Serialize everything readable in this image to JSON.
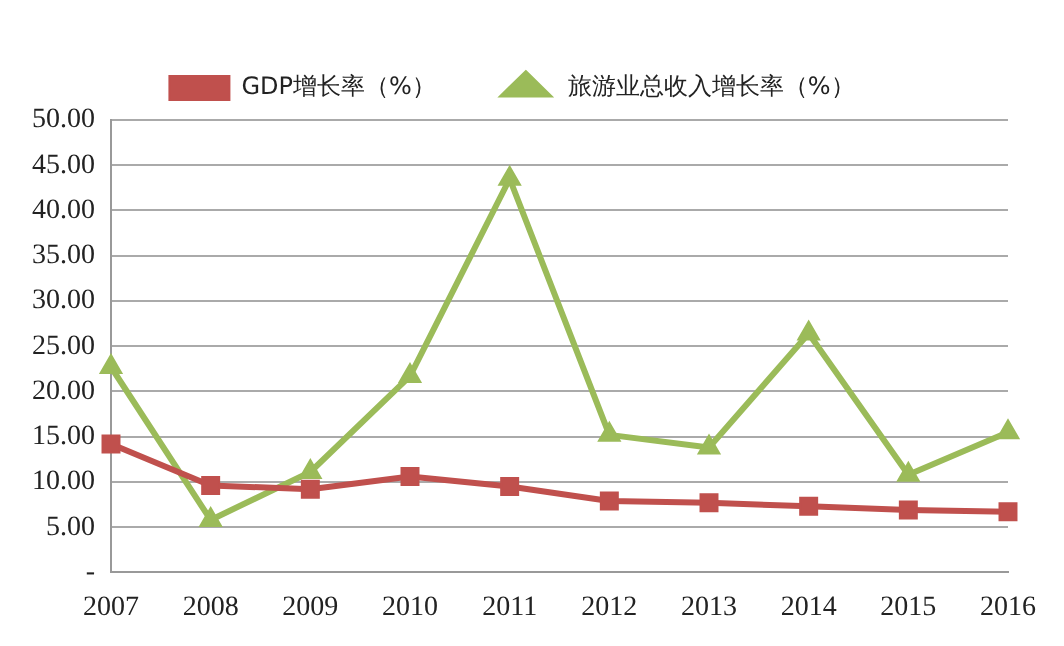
{
  "chart_data": {
    "type": "line",
    "categories": [
      "2007",
      "2008",
      "2009",
      "2010",
      "2011",
      "2012",
      "2013",
      "2014",
      "2015",
      "2016"
    ],
    "series": [
      {
        "name": "GDP增长率（%）",
        "color": "#c0504d",
        "marker": "square",
        "values": [
          14.2,
          9.6,
          9.2,
          10.6,
          9.5,
          7.9,
          7.7,
          7.3,
          6.9,
          6.7
        ]
      },
      {
        "name": "旅游业总收入增长率（%）",
        "color": "#9bbb59",
        "marker": "triangle",
        "values": [
          22.7,
          5.8,
          11.1,
          21.7,
          43.5,
          15.2,
          13.8,
          26.4,
          10.8,
          15.5
        ]
      }
    ],
    "ylim": [
      0,
      50
    ],
    "yticks": [
      {
        "value": 0,
        "label": "-"
      },
      {
        "value": 5,
        "label": "5.00"
      },
      {
        "value": 10,
        "label": "10.00"
      },
      {
        "value": 15,
        "label": "15.00"
      },
      {
        "value": 20,
        "label": "20.00"
      },
      {
        "value": 25,
        "label": "25.00"
      },
      {
        "value": 30,
        "label": "30.00"
      },
      {
        "value": 35,
        "label": "35.00"
      },
      {
        "value": 40,
        "label": "40.00"
      },
      {
        "value": 45,
        "label": "45.00"
      },
      {
        "value": 50,
        "label": "50.00"
      }
    ],
    "grid": "y",
    "legend": "top"
  }
}
